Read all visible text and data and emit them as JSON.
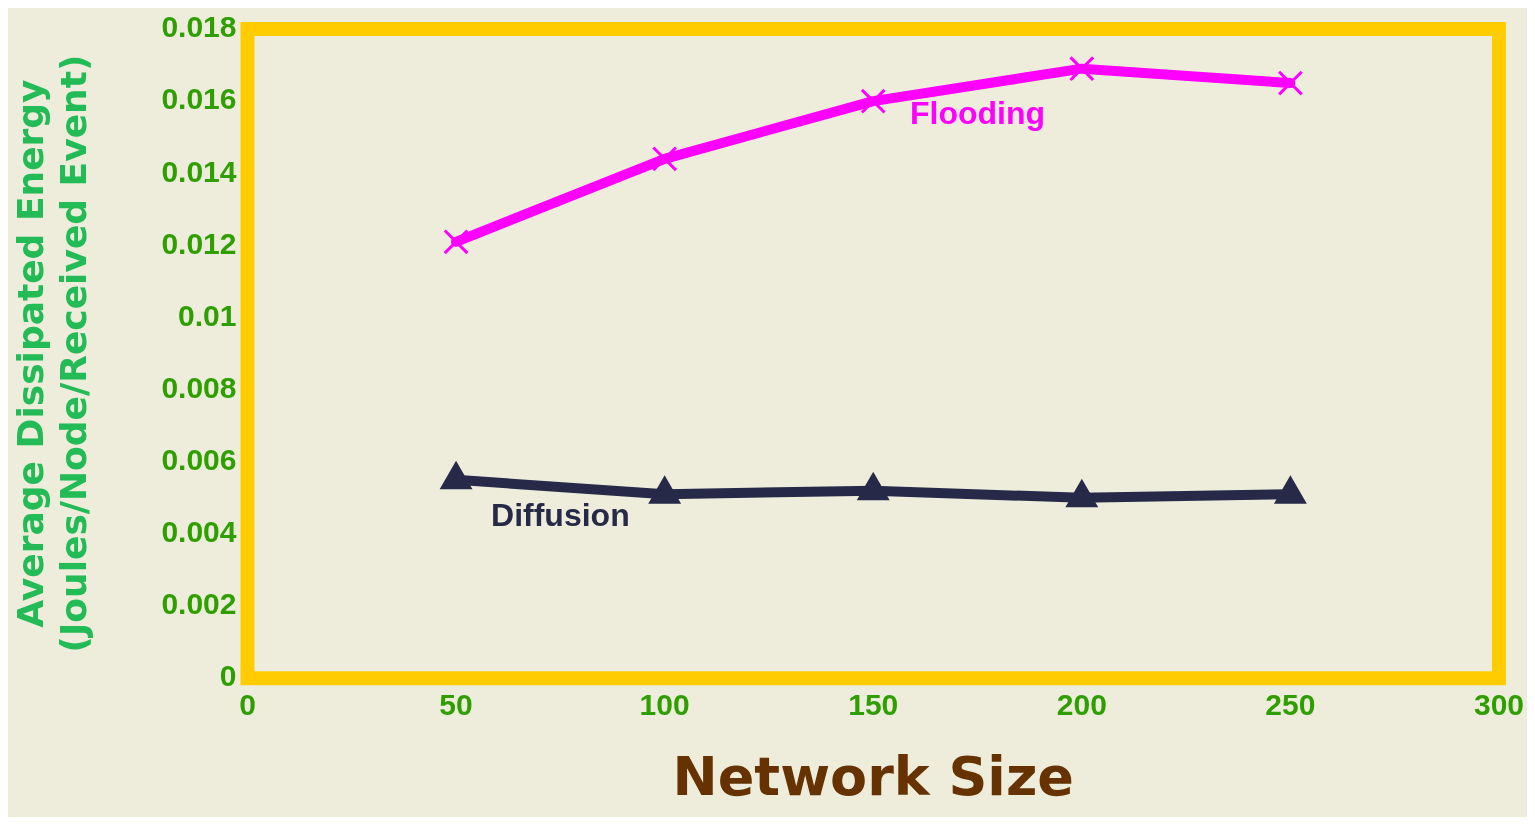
{
  "chart_data": {
    "type": "line",
    "xlabel": "Network Size",
    "ylabel": "Average Dissipated Energy\n(Joules/Node/Received Event)",
    "x": [
      50,
      100,
      150,
      200,
      250
    ],
    "xlim": [
      0,
      300
    ],
    "xticks": [
      0,
      50,
      100,
      150,
      200,
      250,
      300
    ],
    "ylim": [
      0,
      0.018
    ],
    "yticks": [
      0,
      0.002,
      0.004,
      0.006,
      0.008,
      0.01,
      0.012,
      0.014,
      0.016,
      0.018
    ],
    "grid": false,
    "legend": false,
    "series": [
      {
        "name": "Flooding",
        "color": "#ff00ff",
        "marker": "cross",
        "values": [
          0.0121,
          0.0144,
          0.016,
          0.0169,
          0.0165
        ]
      },
      {
        "name": "Diffusion",
        "color": "#262a48",
        "marker": "triangle",
        "values": [
          0.0055,
          0.0051,
          0.0052,
          0.005,
          0.0051
        ]
      }
    ]
  }
}
